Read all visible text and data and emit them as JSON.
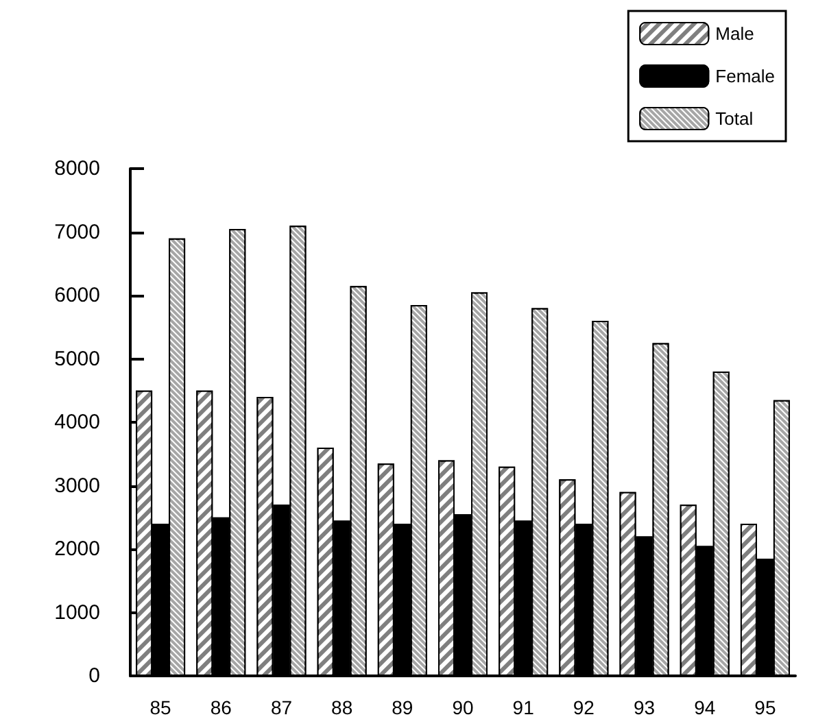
{
  "chart_data": {
    "type": "bar",
    "categories": [
      "85",
      "86",
      "87",
      "88",
      "89",
      "90",
      "91",
      "92",
      "93",
      "94",
      "95"
    ],
    "series": [
      {
        "name": "Male",
        "color": "#7f7f7f",
        "values": [
          4500,
          4500,
          4400,
          3600,
          3350,
          3400,
          3300,
          3100,
          2900,
          2700,
          2400
        ]
      },
      {
        "name": "Female",
        "color": "#000000",
        "values": [
          2400,
          2500,
          2700,
          2450,
          2400,
          2550,
          2450,
          2400,
          2200,
          2050,
          1850
        ]
      },
      {
        "name": "Total",
        "color": "#a6a6a6",
        "values": [
          6900,
          7050,
          7100,
          6150,
          5850,
          6050,
          5800,
          5600,
          5250,
          4800,
          4350
        ]
      }
    ],
    "ylim": [
      0,
      8000
    ],
    "yticks": [
      0,
      1000,
      2000,
      3000,
      4000,
      5000,
      6000,
      7000,
      8000
    ],
    "grid": false,
    "legend": "top right"
  }
}
